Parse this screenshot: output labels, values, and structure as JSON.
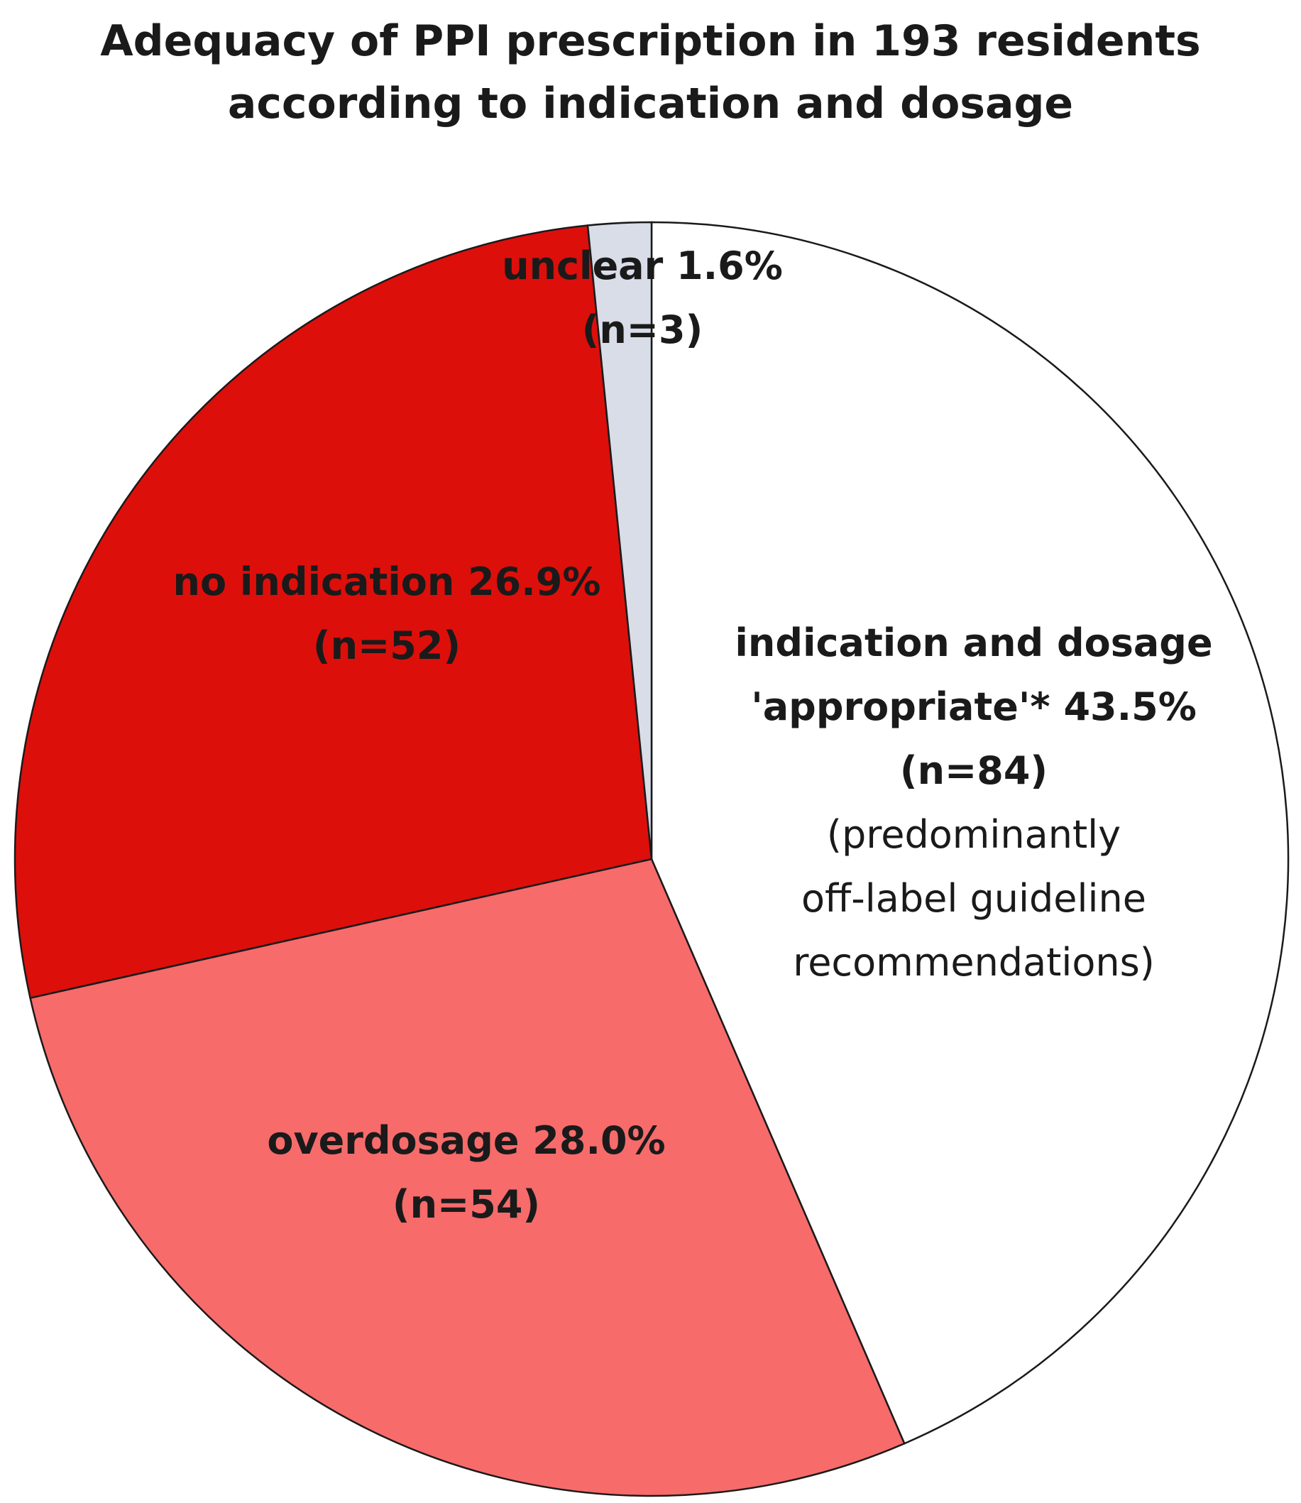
{
  "chart_data": {
    "type": "pie",
    "title_lines": [
      "Adequacy of PPI prescription in 193 residents",
      "according to indication and dosage"
    ],
    "total": 193,
    "slices": [
      {
        "id": "appropriate",
        "percent": 43.5,
        "count": 84,
        "color": "#ffffff",
        "label_lines": [
          "indication and dosage",
          "'appropriate'* 43.5%",
          "(n=84)"
        ],
        "note_lines": [
          "(predominantly",
          "off-label guideline",
          "recommendations)"
        ]
      },
      {
        "id": "overdosage",
        "percent": 28.0,
        "count": 54,
        "color": "#f76b6b",
        "label_lines": [
          "overdosage 28.0%",
          "(n=54)"
        ],
        "note_lines": []
      },
      {
        "id": "no-indication",
        "percent": 26.9,
        "count": 52,
        "color": "#dd0f0b",
        "label_lines": [
          "no indication 26.9%",
          "(n=52)"
        ],
        "note_lines": []
      },
      {
        "id": "unclear",
        "percent": 1.6,
        "count": 3,
        "color": "#d8dde8",
        "label_lines": [
          "unclear 1.6%",
          "(n=3)"
        ],
        "note_lines": []
      }
    ],
    "start_direction": "12 o'clock",
    "direction": "clockwise",
    "legend": "none"
  }
}
